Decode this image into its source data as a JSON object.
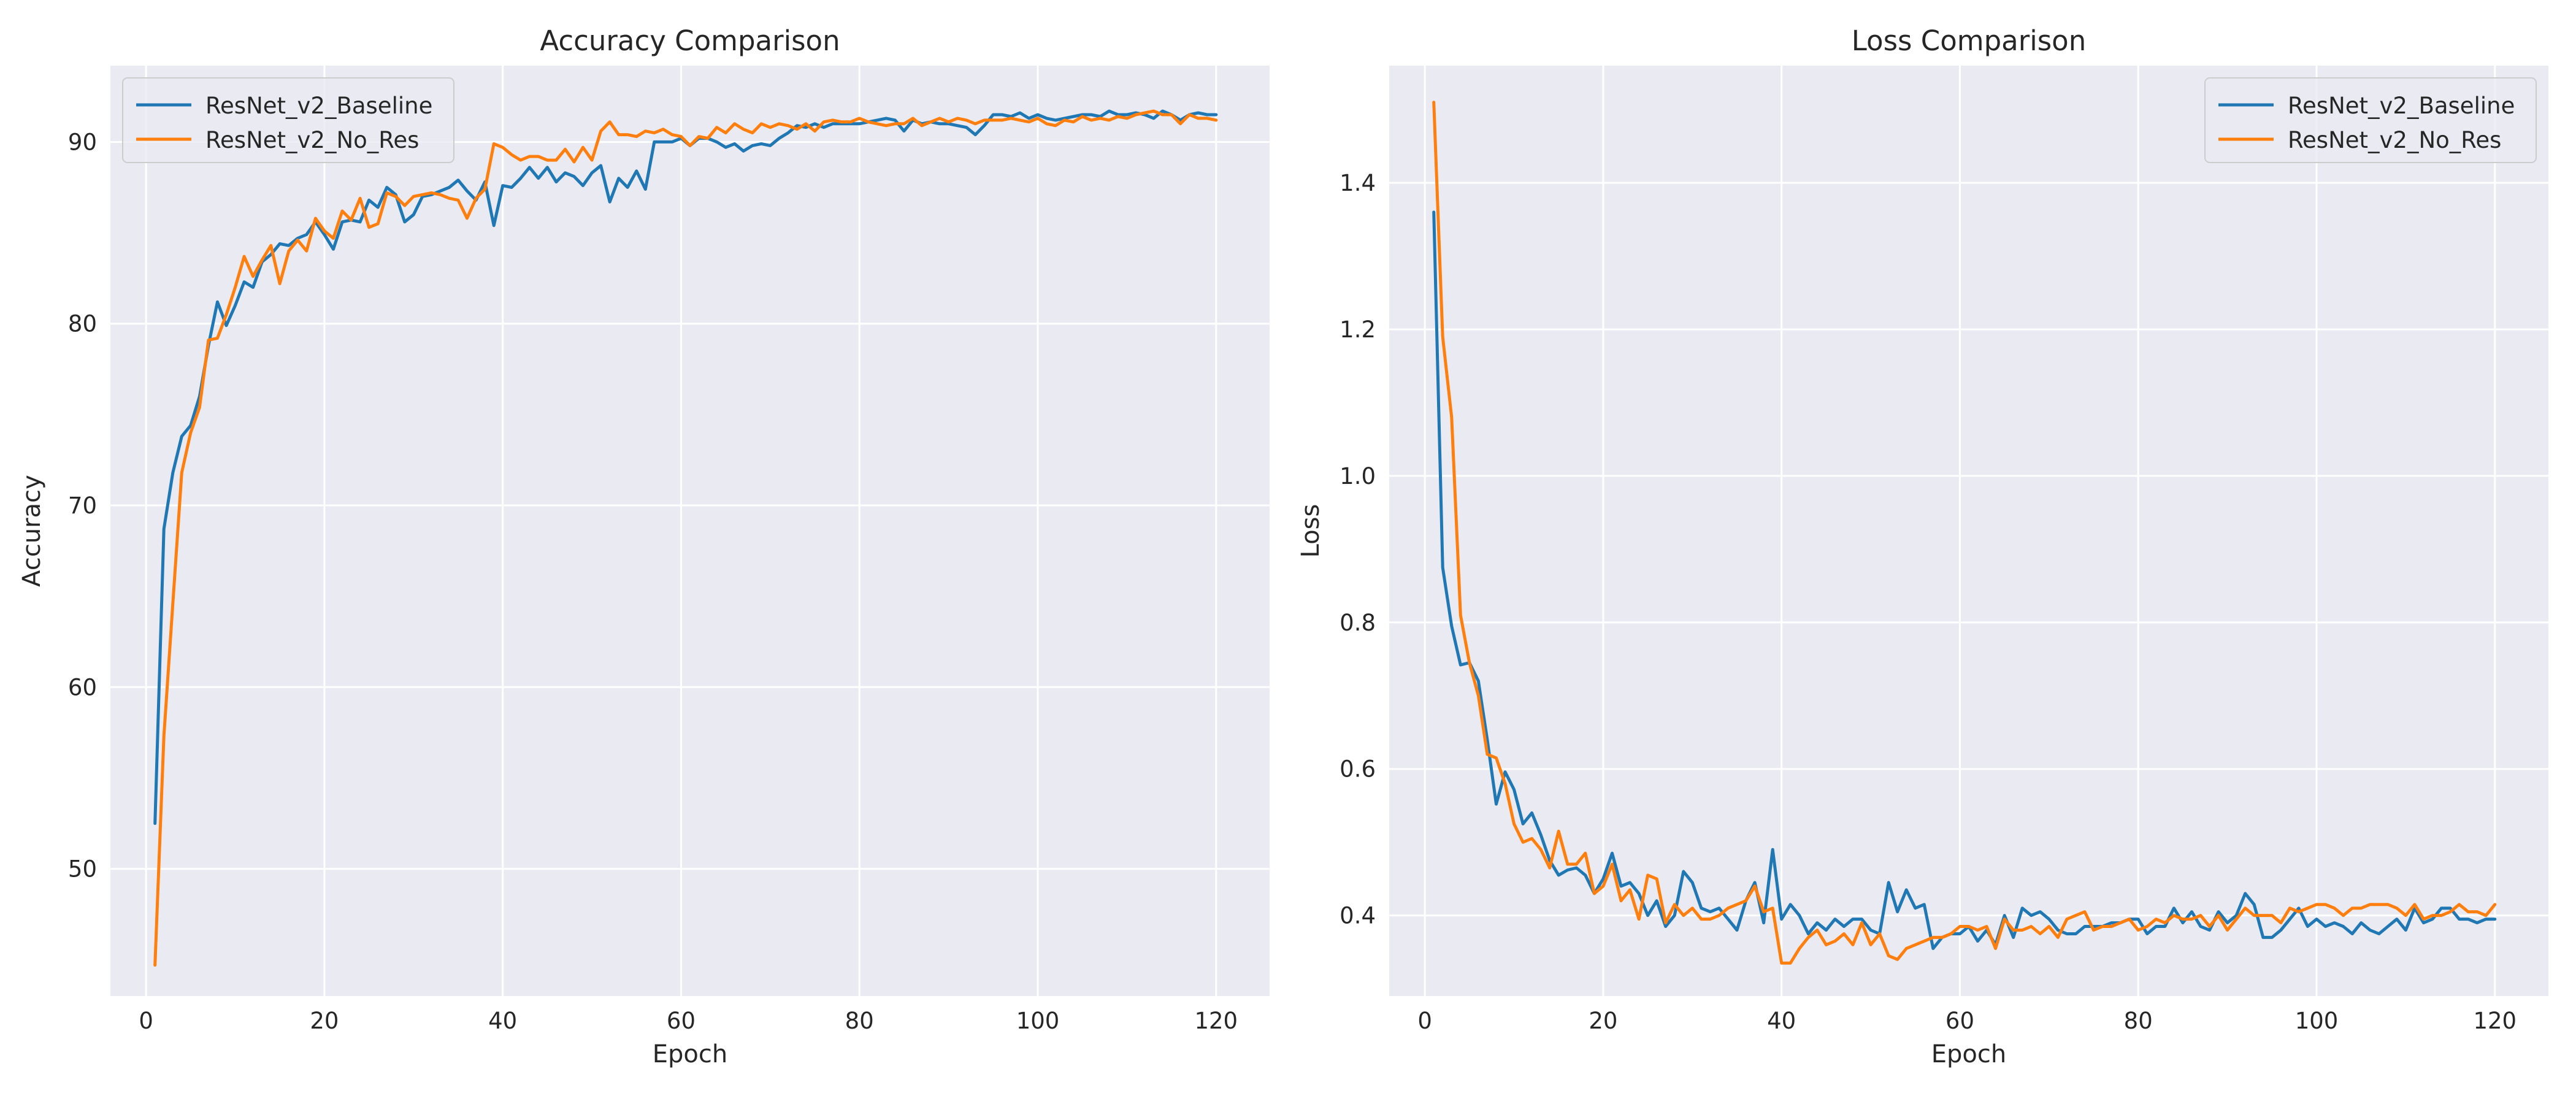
{
  "chart_data": [
    {
      "type": "line",
      "title": "Accuracy Comparison",
      "xlabel": "Epoch",
      "ylabel": "Accuracy",
      "xlim": [
        -4,
        126
      ],
      "ylim": [
        43,
        94.2
      ],
      "xticks": [
        0,
        20,
        40,
        60,
        80,
        100,
        120
      ],
      "yticks": [
        50,
        60,
        70,
        80,
        90
      ],
      "grid": true,
      "legend": "top-left",
      "x": [
        1,
        2,
        3,
        4,
        5,
        6,
        7,
        8,
        9,
        10,
        11,
        12,
        13,
        14,
        15,
        16,
        17,
        18,
        19,
        20,
        21,
        22,
        23,
        24,
        25,
        26,
        27,
        28,
        29,
        30,
        31,
        32,
        33,
        34,
        35,
        36,
        37,
        38,
        39,
        40,
        41,
        42,
        43,
        44,
        45,
        46,
        47,
        48,
        49,
        50,
        51,
        52,
        53,
        54,
        55,
        56,
        57,
        58,
        59,
        60,
        61,
        62,
        63,
        64,
        65,
        66,
        67,
        68,
        69,
        70,
        71,
        72,
        73,
        74,
        75,
        76,
        77,
        78,
        79,
        80,
        81,
        82,
        83,
        84,
        85,
        86,
        87,
        88,
        89,
        90,
        91,
        92,
        93,
        94,
        95,
        96,
        97,
        98,
        99,
        100,
        101,
        102,
        103,
        104,
        105,
        106,
        107,
        108,
        109,
        110,
        111,
        112,
        113,
        114,
        115,
        116,
        117,
        118,
        119,
        120
      ],
      "series": [
        {
          "name": "ResNet_v2_Baseline",
          "color": "#1f77b4",
          "values": [
            52.5,
            68.7,
            71.8,
            73.8,
            74.4,
            76.0,
            78.8,
            81.2,
            79.9,
            81.0,
            82.3,
            82.0,
            83.4,
            83.8,
            84.4,
            84.3,
            84.7,
            84.9,
            85.6,
            84.9,
            84.1,
            85.6,
            85.7,
            85.6,
            86.8,
            86.4,
            87.5,
            87.1,
            85.6,
            86.0,
            87.0,
            87.1,
            87.3,
            87.5,
            87.9,
            87.3,
            86.8,
            87.8,
            85.4,
            87.6,
            87.5,
            88.0,
            88.6,
            88.0,
            88.6,
            87.8,
            88.3,
            88.1,
            87.6,
            88.3,
            88.7,
            86.7,
            88.0,
            87.5,
            88.4,
            87.4,
            90.0,
            90.0,
            90.0,
            90.2,
            89.8,
            90.2,
            90.2,
            90.0,
            89.7,
            89.9,
            89.5,
            89.8,
            89.9,
            89.8,
            90.2,
            90.5,
            90.9,
            90.8,
            91.0,
            90.8,
            91.0,
            91.0,
            91.0,
            91.0,
            91.1,
            91.2,
            91.3,
            91.2,
            90.6,
            91.2,
            91.0,
            91.1,
            91.0,
            91.0,
            90.9,
            90.8,
            90.4,
            90.9,
            91.5,
            91.5,
            91.4,
            91.6,
            91.3,
            91.5,
            91.3,
            91.2,
            91.3,
            91.4,
            91.5,
            91.5,
            91.4,
            91.7,
            91.5,
            91.5,
            91.6,
            91.5,
            91.3,
            91.7,
            91.5,
            91.2,
            91.5,
            91.6,
            91.5,
            91.5
          ]
        },
        {
          "name": "ResNet_v2_No_Res",
          "color": "#ff7f0e",
          "values": [
            44.7,
            57.3,
            64.6,
            71.8,
            74.0,
            75.4,
            79.1,
            79.2,
            80.5,
            82.0,
            83.7,
            82.6,
            83.5,
            84.3,
            82.2,
            84.0,
            84.6,
            84.0,
            85.8,
            85.1,
            84.7,
            86.2,
            85.7,
            86.9,
            85.3,
            85.5,
            87.2,
            87.0,
            86.5,
            87.0,
            87.1,
            87.2,
            87.1,
            86.9,
            86.8,
            85.8,
            86.9,
            87.4,
            89.9,
            89.7,
            89.3,
            89.0,
            89.2,
            89.2,
            89.0,
            89.0,
            89.6,
            88.9,
            89.7,
            89.0,
            90.6,
            91.1,
            90.4,
            90.4,
            90.3,
            90.6,
            90.5,
            90.7,
            90.4,
            90.3,
            89.8,
            90.3,
            90.2,
            90.8,
            90.5,
            91.0,
            90.7,
            90.5,
            91.0,
            90.8,
            91.0,
            90.9,
            90.7,
            91.0,
            90.6,
            91.1,
            91.2,
            91.1,
            91.1,
            91.3,
            91.1,
            91.0,
            90.9,
            91.0,
            91.0,
            91.3,
            90.9,
            91.1,
            91.3,
            91.1,
            91.3,
            91.2,
            91.0,
            91.2,
            91.2,
            91.2,
            91.3,
            91.2,
            91.1,
            91.3,
            91.0,
            90.9,
            91.2,
            91.1,
            91.4,
            91.2,
            91.3,
            91.2,
            91.4,
            91.3,
            91.5,
            91.6,
            91.7,
            91.5,
            91.5,
            91.0,
            91.5,
            91.3,
            91.3,
            91.2
          ]
        }
      ]
    },
    {
      "type": "line",
      "title": "Loss Comparison",
      "xlabel": "Epoch",
      "ylabel": "Loss",
      "xlim": [
        -4,
        126
      ],
      "ylim": [
        0.29,
        1.56
      ],
      "xticks": [
        0,
        20,
        40,
        60,
        80,
        100,
        120
      ],
      "yticks": [
        0.4,
        0.6,
        0.8,
        1.0,
        1.2,
        1.4
      ],
      "ytick_labels": [
        "0.4",
        "0.6",
        "0.8",
        "1.0",
        "1.2",
        "1.4"
      ],
      "grid": true,
      "legend": "top-right",
      "x": [
        1,
        2,
        3,
        4,
        5,
        6,
        7,
        8,
        9,
        10,
        11,
        12,
        13,
        14,
        15,
        16,
        17,
        18,
        19,
        20,
        21,
        22,
        23,
        24,
        25,
        26,
        27,
        28,
        29,
        30,
        31,
        32,
        33,
        34,
        35,
        36,
        37,
        38,
        39,
        40,
        41,
        42,
        43,
        44,
        45,
        46,
        47,
        48,
        49,
        50,
        51,
        52,
        53,
        54,
        55,
        56,
        57,
        58,
        59,
        60,
        61,
        62,
        63,
        64,
        65,
        66,
        67,
        68,
        69,
        70,
        71,
        72,
        73,
        74,
        75,
        76,
        77,
        78,
        79,
        80,
        81,
        82,
        83,
        84,
        85,
        86,
        87,
        88,
        89,
        90,
        91,
        92,
        93,
        94,
        95,
        96,
        97,
        98,
        99,
        100,
        101,
        102,
        103,
        104,
        105,
        106,
        107,
        108,
        109,
        110,
        111,
        112,
        113,
        114,
        115,
        116,
        117,
        118,
        119,
        120
      ],
      "series": [
        {
          "name": "ResNet_v2_Baseline",
          "color": "#1f77b4",
          "values": [
            1.36,
            0.875,
            0.795,
            0.742,
            0.745,
            0.72,
            0.64,
            0.552,
            0.596,
            0.572,
            0.525,
            0.54,
            0.51,
            0.475,
            0.455,
            0.462,
            0.465,
            0.455,
            0.43,
            0.45,
            0.485,
            0.44,
            0.445,
            0.43,
            0.4,
            0.42,
            0.385,
            0.4,
            0.46,
            0.445,
            0.41,
            0.405,
            0.41,
            0.395,
            0.38,
            0.42,
            0.445,
            0.39,
            0.49,
            0.395,
            0.415,
            0.4,
            0.375,
            0.39,
            0.38,
            0.395,
            0.385,
            0.395,
            0.395,
            0.38,
            0.375,
            0.445,
            0.405,
            0.435,
            0.41,
            0.415,
            0.355,
            0.37,
            0.375,
            0.375,
            0.385,
            0.365,
            0.38,
            0.36,
            0.4,
            0.37,
            0.41,
            0.4,
            0.405,
            0.395,
            0.38,
            0.375,
            0.375,
            0.385,
            0.385,
            0.385,
            0.39,
            0.39,
            0.395,
            0.395,
            0.375,
            0.385,
            0.385,
            0.41,
            0.39,
            0.405,
            0.385,
            0.38,
            0.405,
            0.39,
            0.4,
            0.43,
            0.415,
            0.37,
            0.37,
            0.38,
            0.395,
            0.41,
            0.385,
            0.395,
            0.385,
            0.39,
            0.385,
            0.375,
            0.39,
            0.38,
            0.375,
            0.385,
            0.395,
            0.38,
            0.41,
            0.39,
            0.395,
            0.41,
            0.41,
            0.395,
            0.395,
            0.39,
            0.395,
            0.395
          ]
        },
        {
          "name": "ResNet_v2_No_Res",
          "color": "#ff7f0e",
          "values": [
            1.51,
            1.19,
            1.08,
            0.81,
            0.745,
            0.7,
            0.62,
            0.615,
            0.58,
            0.525,
            0.5,
            0.505,
            0.49,
            0.465,
            0.515,
            0.47,
            0.47,
            0.485,
            0.43,
            0.44,
            0.47,
            0.42,
            0.435,
            0.395,
            0.455,
            0.45,
            0.39,
            0.415,
            0.4,
            0.41,
            0.395,
            0.395,
            0.4,
            0.41,
            0.415,
            0.42,
            0.44,
            0.405,
            0.41,
            0.335,
            0.335,
            0.355,
            0.37,
            0.38,
            0.36,
            0.365,
            0.375,
            0.36,
            0.39,
            0.36,
            0.375,
            0.345,
            0.34,
            0.355,
            0.36,
            0.365,
            0.37,
            0.37,
            0.375,
            0.385,
            0.385,
            0.38,
            0.385,
            0.355,
            0.395,
            0.38,
            0.38,
            0.385,
            0.375,
            0.385,
            0.37,
            0.395,
            0.4,
            0.405,
            0.38,
            0.385,
            0.385,
            0.39,
            0.395,
            0.38,
            0.385,
            0.395,
            0.39,
            0.4,
            0.395,
            0.395,
            0.4,
            0.385,
            0.4,
            0.38,
            0.395,
            0.41,
            0.4,
            0.4,
            0.4,
            0.39,
            0.41,
            0.405,
            0.41,
            0.415,
            0.415,
            0.41,
            0.4,
            0.41,
            0.41,
            0.415,
            0.415,
            0.415,
            0.41,
            0.4,
            0.415,
            0.395,
            0.4,
            0.4,
            0.405,
            0.415,
            0.405,
            0.405,
            0.4,
            0.415
          ]
        }
      ]
    }
  ]
}
